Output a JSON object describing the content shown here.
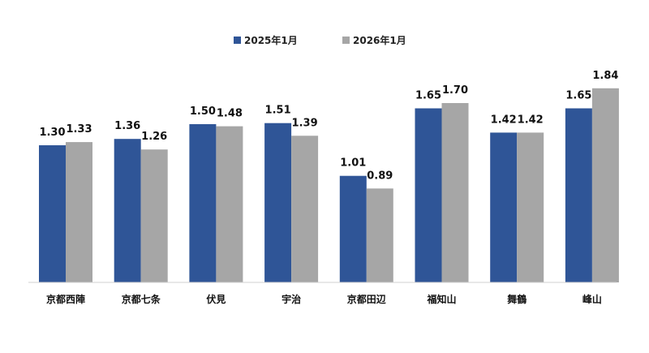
{
  "chart_data": {
    "type": "bar",
    "categories": [
      "京都西陣",
      "京都七条",
      "伏見",
      "宇治",
      "京都田辺",
      "福知山",
      "舞鶴",
      "峰山"
    ],
    "series": [
      {
        "name": "2025年1月",
        "color": "#2f5597",
        "values": [
          1.3,
          1.36,
          1.5,
          1.51,
          1.01,
          1.65,
          1.42,
          1.65
        ],
        "labels": [
          "1.30",
          "1.36",
          "1.50",
          "1.51",
          "1.01",
          "1.65",
          "1.42",
          "1.65"
        ]
      },
      {
        "name": "2026年1月",
        "color": "#a6a6a6",
        "values": [
          1.33,
          1.26,
          1.48,
          1.39,
          0.89,
          1.7,
          1.42,
          1.84
        ],
        "labels": [
          "1.33",
          "1.26",
          "1.48",
          "1.39",
          "0.89",
          "1.70",
          "1.42",
          "1.84"
        ]
      }
    ],
    "ylim": [
      0,
      2.0
    ],
    "grid": false,
    "legend_position": "top-center",
    "title": "",
    "xlabel": "",
    "ylabel": ""
  }
}
